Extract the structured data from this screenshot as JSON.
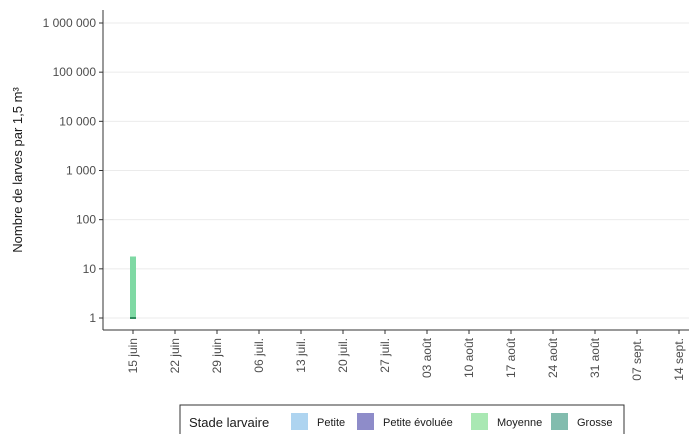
{
  "chart_data": {
    "type": "bar",
    "ylabel": "Nombre de larves par 1,5 m³",
    "yscale": "log",
    "ylim": [
      1,
      1000000
    ],
    "yticks": [
      1,
      10,
      100,
      1000,
      10000,
      100000,
      1000000
    ],
    "ytick_labels": [
      "1",
      "10",
      "100",
      "1 000",
      "10 000",
      "100 000",
      "1 000 000"
    ],
    "categories": [
      "15 juin",
      "22 juin",
      "29 juin",
      "06 juil.",
      "13 juil.",
      "20 juil.",
      "27 juil.",
      "03 août",
      "10 août",
      "17 août",
      "24 août",
      "31 août",
      "07 sept.",
      "14 sept."
    ],
    "grid": true,
    "legend": {
      "title": "Stade larvaire",
      "position": "bottom",
      "entries": [
        {
          "label": "Petite",
          "color": "#aed4f0"
        },
        {
          "label": "Petite évoluée",
          "color": "#8e8cc9"
        },
        {
          "label": "Moyenne",
          "color": "#a9e8b3"
        },
        {
          "label": "Grosse",
          "color": "#82bcae"
        }
      ]
    },
    "series": [
      {
        "name": "Petite",
        "values": [
          0,
          0,
          0,
          0,
          0,
          0,
          0,
          0,
          0,
          0,
          0,
          0,
          0,
          0
        ]
      },
      {
        "name": "Petite évoluée",
        "values": [
          0,
          0,
          0,
          0,
          0,
          0,
          0,
          0,
          0,
          0,
          0,
          0,
          0,
          0
        ]
      },
      {
        "name": "Moyenne",
        "values": [
          17,
          0,
          0,
          0,
          0,
          0,
          0,
          0,
          0,
          0,
          0,
          0,
          0,
          0
        ]
      },
      {
        "name": "Grosse",
        "values": [
          1,
          0,
          0,
          0,
          0,
          0,
          0,
          0,
          0,
          0,
          0,
          0,
          0,
          0
        ]
      }
    ],
    "bar_fill": "#7fd9a4",
    "bar_edge": "#2f8a5d"
  }
}
